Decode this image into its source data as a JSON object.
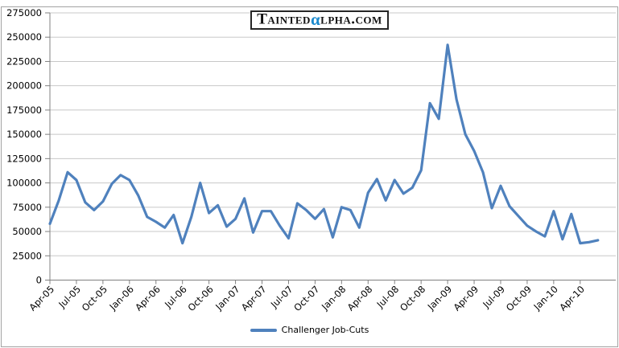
{
  "logo": {
    "part1": "Tainted",
    "alpha": "α",
    "part2": "lpha.com"
  },
  "legend": {
    "label": "Challenger Job-Cuts"
  },
  "colors": {
    "line": "#4f81bd",
    "alpha_blue": "#1b8ace",
    "gridline": "#c8c8c8",
    "axis": "#808080",
    "frame": "#a3a3a3",
    "text": "#000000"
  },
  "chart_data": {
    "type": "line",
    "title": "",
    "xlabel": "",
    "ylabel": "",
    "x_start_month": "Apr-05",
    "x_end_month": "Jun-10",
    "months_per_point": 1,
    "x_ticks_every": 3,
    "x_tick_labels": [
      "Apr-05",
      "Jul-05",
      "Oct-05",
      "Jan-06",
      "Apr-06",
      "Jul-06",
      "Oct-06",
      "Jan-07",
      "Apr-07",
      "Jul-07",
      "Oct-07",
      "Jan-08",
      "Apr-08",
      "Jul-08",
      "Oct-08",
      "Jan-09",
      "Apr-09",
      "Jul-09",
      "Oct-09",
      "Jan-10",
      "Apr-10"
    ],
    "ylim": [
      0,
      275000
    ],
    "y_tick_step": 25000,
    "grid": "horizontal-only",
    "legend_position": "bottom-center",
    "series": [
      {
        "name": "Challenger Job-Cuts",
        "values": [
          58000,
          82000,
          111000,
          103000,
          80000,
          72000,
          81000,
          99000,
          108000,
          103000,
          87000,
          65000,
          60000,
          54000,
          67000,
          38000,
          65000,
          100000,
          69000,
          77000,
          55000,
          63000,
          84000,
          49000,
          71000,
          71000,
          56000,
          43000,
          79000,
          72000,
          63000,
          73000,
          44000,
          75000,
          72000,
          54000,
          90000,
          104000,
          82000,
          103000,
          89000,
          95000,
          113000,
          182000,
          166000,
          242000,
          186000,
          150000,
          133000,
          111000,
          74000,
          97000,
          76000,
          66000,
          56000,
          50000,
          45000,
          71000,
          42000,
          68000,
          38000,
          39000,
          41000
        ]
      }
    ]
  }
}
